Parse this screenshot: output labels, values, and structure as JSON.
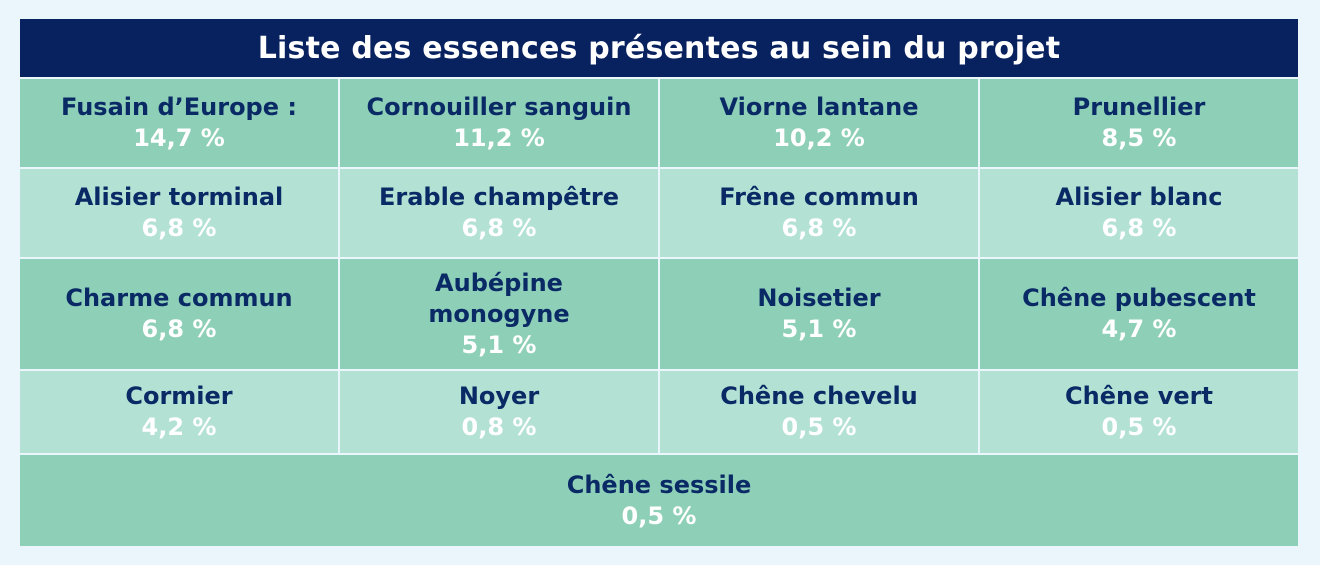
{
  "title": "Liste des essences présentes au sein du projet",
  "colors": {
    "header_bg": "#08215f",
    "row_dark": "#8ecfb8",
    "row_light": "#b3e1d4",
    "name_text": "#0a2a66",
    "value_text": "#ffffff",
    "page_bg": "#eaf6fc"
  },
  "rows": [
    [
      {
        "name": "Fusain d’Europe :",
        "value": "14,7 %"
      },
      {
        "name": "Cornouiller sanguin",
        "value": "11,2 %"
      },
      {
        "name": "Viorne lantane",
        "value": "10,2 %"
      },
      {
        "name": "Prunellier",
        "value": "8,5 %"
      }
    ],
    [
      {
        "name": "Alisier torminal",
        "value": "6,8 %"
      },
      {
        "name": "Erable champêtre",
        "value": "6,8 %"
      },
      {
        "name": "Frêne commun",
        "value": "6,8 %"
      },
      {
        "name": "Alisier blanc",
        "value": "6,8 %"
      }
    ],
    [
      {
        "name": "Charme commun",
        "value": "6,8 %"
      },
      {
        "name": "Aubépine monogyne",
        "value": "5,1 %"
      },
      {
        "name": "Noisetier",
        "value": "5,1 %"
      },
      {
        "name": "Chêne pubescent",
        "value": "4,7 %"
      }
    ],
    [
      {
        "name": "Cormier",
        "value": "4,2 %"
      },
      {
        "name": "Noyer",
        "value": "0,8 %"
      },
      {
        "name": "Chêne chevelu",
        "value": "0,5 %"
      },
      {
        "name": "Chêne vert",
        "value": "0,5 %"
      }
    ]
  ],
  "last_row": {
    "name": "Chêne sessile",
    "value": "0,5 %"
  }
}
